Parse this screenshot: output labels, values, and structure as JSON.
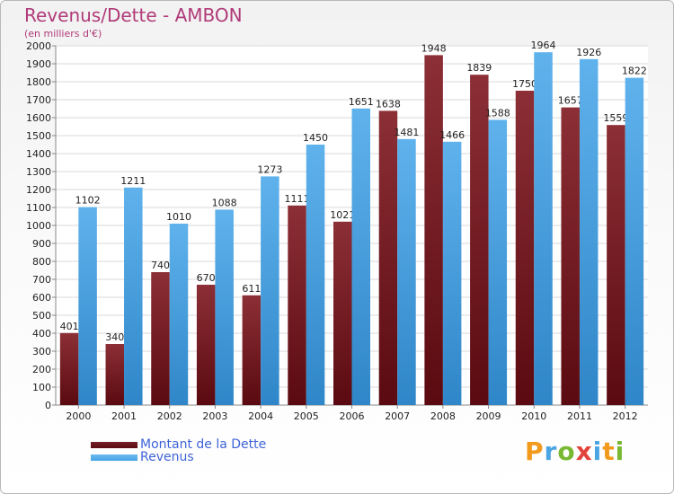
{
  "header": {
    "title": "Revenus/Dette - AMBON",
    "subtitle": "(en milliers d'€)"
  },
  "legend": {
    "items": [
      {
        "label": "Montant de la Dette",
        "color": "#7a1f28"
      },
      {
        "label": "Revenus",
        "color": "#47a4e6"
      }
    ]
  },
  "logo": {
    "text": "Proxiti",
    "letters": [
      {
        "ch": "P",
        "color": "#f29a1c"
      },
      {
        "ch": "r",
        "color": "#4ca5e3"
      },
      {
        "ch": "o",
        "color": "#79b833"
      },
      {
        "ch": "x",
        "color": "#e2433b"
      },
      {
        "ch": "i",
        "color": "#4ca5e3"
      },
      {
        "ch": "t",
        "color": "#f29a1c"
      },
      {
        "ch": "i",
        "color": "#79b833"
      }
    ]
  },
  "chart_data": {
    "type": "bar",
    "title": "Revenus/Dette - AMBON",
    "subtitle": "(en milliers d'€)",
    "categories": [
      "2000",
      "2001",
      "2002",
      "2003",
      "2004",
      "2005",
      "2006",
      "2007",
      "2008",
      "2009",
      "2010",
      "2011",
      "2012"
    ],
    "series": [
      {
        "name": "Montant de la Dette",
        "color": "#7a1f28",
        "values": [
          401,
          340,
          740,
          670,
          611,
          1111,
          1021,
          1638,
          1948,
          1839,
          1750,
          1657,
          1559
        ]
      },
      {
        "name": "Revenus",
        "color": "#47a4e6",
        "values": [
          1102,
          1211,
          1010,
          1088,
          1273,
          1450,
          1651,
          1481,
          1466,
          1588,
          1964,
          1926,
          1822
        ]
      }
    ],
    "ylim": [
      0,
      2000
    ],
    "ytick_step": 100,
    "grid": true,
    "legend_position": "bottom-left"
  }
}
